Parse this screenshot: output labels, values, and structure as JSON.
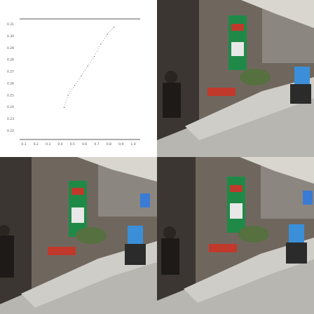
{
  "chart_data": {
    "type": "line",
    "title": "",
    "xlabel": "",
    "ylabel": "",
    "x_ticks": [
      "0.1",
      "0.2",
      "0.3",
      "0.4",
      "0.5",
      "0.6",
      "0.7",
      "0.8",
      "0.9",
      "1.0"
    ],
    "y_ticks": [
      "0.31",
      "0.30",
      "0.29",
      "0.28",
      "0.27",
      "0.26",
      "0.25",
      "0.24",
      "0.23",
      "0.22"
    ],
    "xlim": [
      0.08,
      1.0
    ],
    "ylim": [
      0.22,
      0.315
    ],
    "grid": false,
    "series": [
      {
        "x": [
          0.42,
          0.45,
          0.5,
          0.55,
          0.6,
          0.65,
          0.7,
          0.75,
          0.8
        ],
        "y": [
          0.244,
          0.254,
          0.262,
          0.27,
          0.278,
          0.286,
          0.296,
          0.304,
          0.31
        ],
        "color": "#777777"
      }
    ]
  },
  "panels": {
    "top_right": "street-photo-frame-1",
    "bottom_left": "street-photo-frame-2",
    "bottom_right": "street-photo-frame-3"
  },
  "colors": {
    "shop_sign_green": "#1f8a47",
    "shop_sign_red": "#c0392b",
    "rider_shirt_blue": "#3a8fd8",
    "pavement": "#b8b6b1",
    "wall": "#6f675e"
  }
}
